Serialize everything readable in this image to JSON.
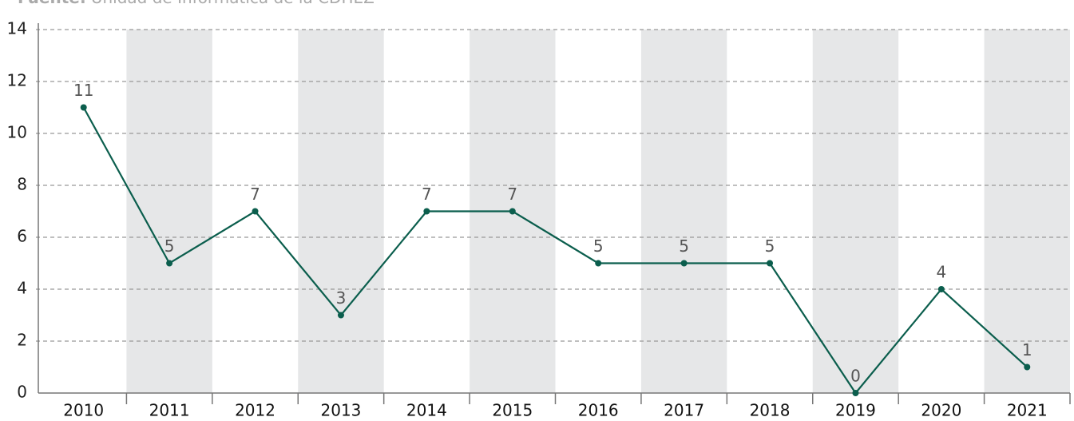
{
  "chart_data": {
    "type": "line",
    "source_label": "Fuente:",
    "source": "Unidad de Informática de la CDHEZ",
    "categories": [
      "2010",
      "2011",
      "2012",
      "2013",
      "2014",
      "2015",
      "2016",
      "2017",
      "2018",
      "2019",
      "2020",
      "2021"
    ],
    "series": [
      {
        "color": "#0b5e4d",
        "values": [
          11,
          5,
          7,
          3,
          7,
          7,
          5,
          5,
          5,
          0,
          4,
          1
        ]
      }
    ],
    "ylim": [
      0,
      14
    ],
    "yticks": [
      0,
      2,
      4,
      6,
      8,
      10,
      12,
      14
    ],
    "grid": true
  }
}
